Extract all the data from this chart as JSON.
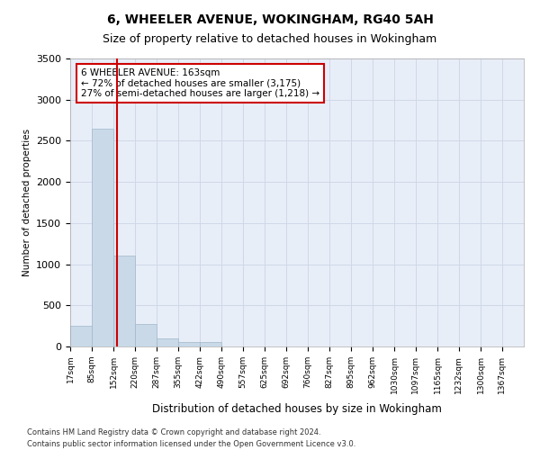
{
  "title_line1": "6, WHEELER AVENUE, WOKINGHAM, RG40 5AH",
  "title_line2": "Size of property relative to detached houses in Wokingham",
  "xlabel": "Distribution of detached houses by size in Wokingham",
  "ylabel": "Number of detached properties",
  "bin_labels": [
    "17sqm",
    "85sqm",
    "152sqm",
    "220sqm",
    "287sqm",
    "355sqm",
    "422sqm",
    "490sqm",
    "557sqm",
    "625sqm",
    "692sqm",
    "760sqm",
    "827sqm",
    "895sqm",
    "962sqm",
    "1030sqm",
    "1097sqm",
    "1165sqm",
    "1232sqm",
    "1300sqm",
    "1367sqm"
  ],
  "bin_edges": [
    17,
    85,
    152,
    220,
    287,
    355,
    422,
    490,
    557,
    625,
    692,
    760,
    827,
    895,
    962,
    1030,
    1097,
    1165,
    1232,
    1300,
    1367
  ],
  "bar_heights": [
    250,
    2650,
    1100,
    270,
    100,
    60,
    50,
    5,
    3,
    2,
    1,
    1,
    0,
    0,
    0,
    0,
    0,
    0,
    0,
    0
  ],
  "bar_color": "#c9d9e8",
  "bar_edge_color": "#a0b8cc",
  "property_size": 163,
  "property_label": "6 WHEELER AVENUE: 163sqm",
  "pct_smaller": 72,
  "count_smaller": 3175,
  "pct_larger_semi": 27,
  "count_larger_semi": 1218,
  "vline_color": "#cc0000",
  "annotation_box_color": "#cc0000",
  "ylim": [
    0,
    3500
  ],
  "yticks": [
    0,
    500,
    1000,
    1500,
    2000,
    2500,
    3000,
    3500
  ],
  "grid_color": "#d0d8e8",
  "bg_color": "#e8eef8",
  "footer_line1": "Contains HM Land Registry data © Crown copyright and database right 2024.",
  "footer_line2": "Contains public sector information licensed under the Open Government Licence v3.0."
}
